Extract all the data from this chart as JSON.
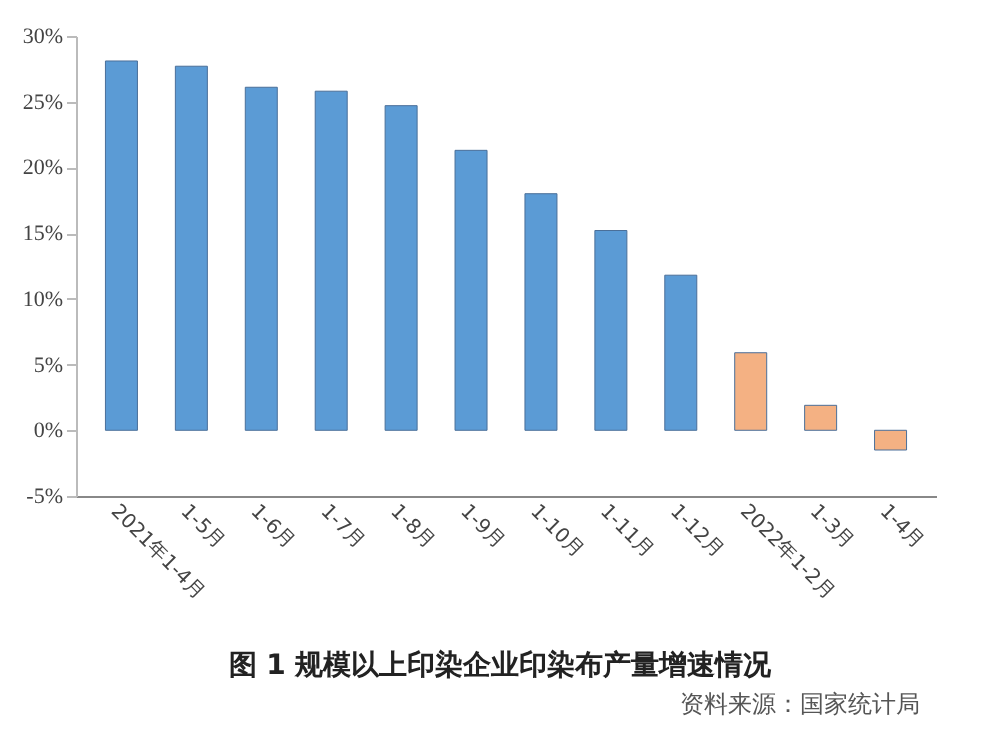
{
  "chart_data": {
    "type": "bar",
    "title": "图 1  规模以上印染企业印染布产量增速情况",
    "annotations": [
      "资料来源：国家统计局"
    ],
    "categories": [
      "2021年1-4月",
      "1-5月",
      "1-6月",
      "1-7月",
      "1-8月",
      "1-9月",
      "1-10月",
      "1-11月",
      "1-12月",
      "2022年1-2月",
      "1-3月",
      "1-4月"
    ],
    "values": [
      28.1,
      27.7,
      26.1,
      25.8,
      24.7,
      21.3,
      18.0,
      15.2,
      11.8,
      5.9,
      1.9,
      -1.5
    ],
    "colors": [
      "#5b9bd5",
      "#5b9bd5",
      "#5b9bd5",
      "#5b9bd5",
      "#5b9bd5",
      "#5b9bd5",
      "#5b9bd5",
      "#5b9bd5",
      "#5b9bd5",
      "#f4b183",
      "#f4b183",
      "#f4b183"
    ],
    "ylim": [
      -5,
      30
    ],
    "yticks": [
      {
        "value": -5,
        "label": "-5%"
      },
      {
        "value": 0,
        "label": "0%"
      },
      {
        "value": 5,
        "label": "5%"
      },
      {
        "value": 10,
        "label": "10%"
      },
      {
        "value": 15,
        "label": "15%"
      },
      {
        "value": 20,
        "label": "20%"
      },
      {
        "value": 25,
        "label": "25%"
      },
      {
        "value": 30,
        "label": "30%"
      }
    ]
  }
}
